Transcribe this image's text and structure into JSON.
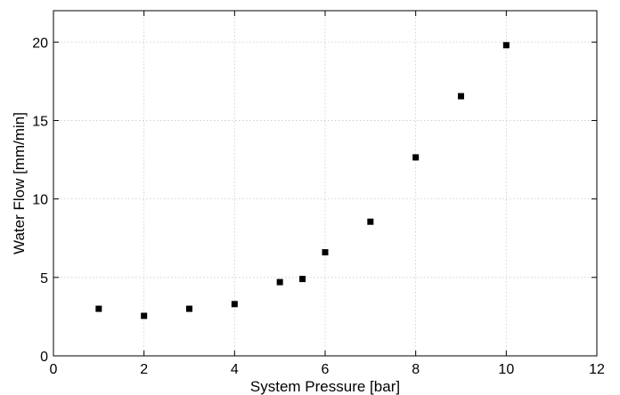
{
  "chart_data": {
    "type": "scatter",
    "title": "",
    "xlabel": "System Pressure [bar]",
    "ylabel": "Water Flow [mm/min]",
    "xlim": [
      0,
      12
    ],
    "ylim": [
      0,
      22
    ],
    "xticks": [
      0,
      2,
      4,
      6,
      8,
      10,
      12
    ],
    "yticks": [
      0,
      5,
      10,
      15,
      20
    ],
    "grid": true,
    "marker": "square",
    "marker_color": "#000000",
    "series": [
      {
        "x": [
          1,
          2,
          3,
          4,
          5,
          5.5,
          6,
          7,
          8,
          9,
          10
        ],
        "y": [
          3.0,
          2.55,
          3.0,
          3.3,
          4.7,
          4.9,
          6.6,
          8.55,
          12.65,
          16.55,
          19.8
        ]
      }
    ]
  }
}
